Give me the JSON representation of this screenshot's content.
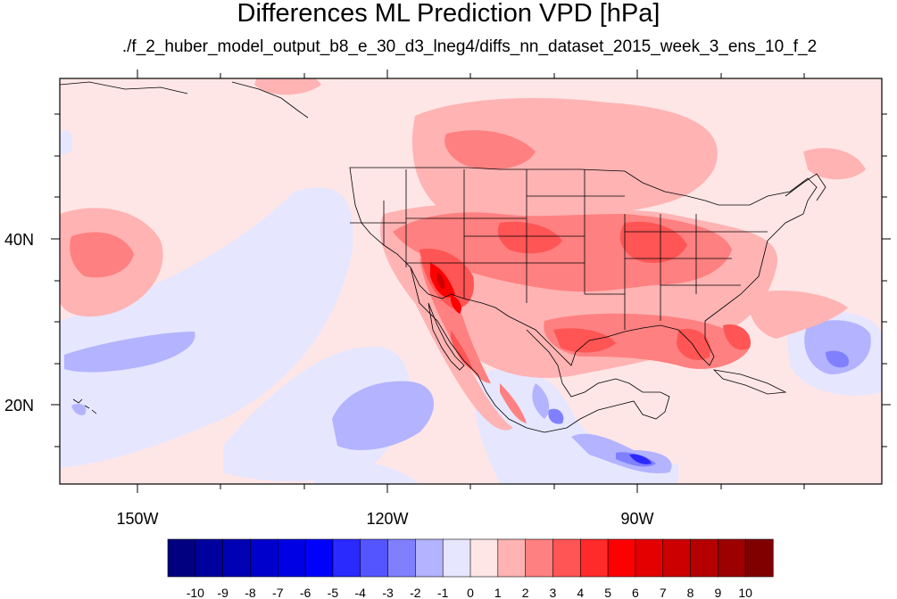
{
  "title": "Differences ML Prediction VPD [hPa]",
  "subtitle": "./f_2_huber_model_output_b8_e_30_d3_lneg4/diffs_nn_dataset_2015_week_3_ens_10_f_2",
  "axes": {
    "lon_labels": [
      "150W",
      "120W",
      "90W"
    ],
    "lat_labels": [
      "40N",
      "20N"
    ]
  },
  "colorbar": {
    "labels": [
      "-10",
      "-9",
      "-8",
      "-7",
      "-6",
      "-5",
      "-4",
      "-3",
      "-2",
      "-1",
      "0",
      "1",
      "2",
      "3",
      "4",
      "5",
      "6",
      "7",
      "8",
      "9",
      "10"
    ],
    "colors": [
      "#000080",
      "#00009c",
      "#0000b4",
      "#0000cc",
      "#0000e4",
      "#0000ff",
      "#2a2aff",
      "#5555ff",
      "#8080ff",
      "#b3b3ff",
      "#e6e6ff",
      "#ffe6e6",
      "#ffb3b3",
      "#ff8080",
      "#ff5555",
      "#ff2a2a",
      "#ff0000",
      "#e40000",
      "#cc0000",
      "#b40000",
      "#9c0000",
      "#800000"
    ]
  },
  "colors": {
    "background_field": "#ffe6e6",
    "map_frame": "#000000"
  }
}
